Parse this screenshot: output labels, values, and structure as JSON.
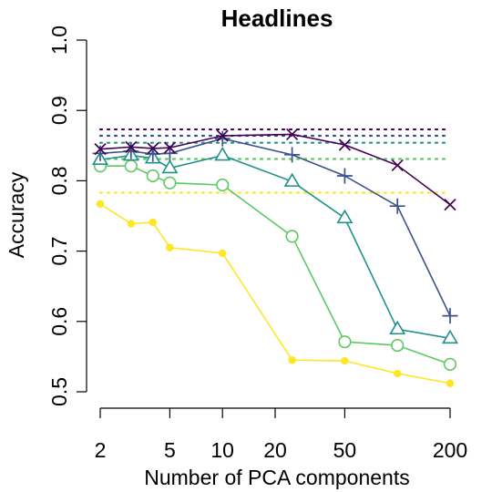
{
  "chart_data": {
    "type": "line",
    "title": "Headlines",
    "xlabel": "Number of PCA components",
    "ylabel": "Accuracy",
    "x_scale": "log",
    "xlim": [
      2,
      200
    ],
    "ylim": [
      0.5,
      1.0
    ],
    "x_ticks": [
      2,
      5,
      10,
      20,
      50,
      200
    ],
    "x_tick_labels": [
      "2",
      "5",
      "10",
      "20",
      "50",
      "200"
    ],
    "y_ticks": [
      0.5,
      0.6,
      0.7,
      0.8,
      0.9,
      1.0
    ],
    "y_tick_labels": [
      "0.5",
      "0.6",
      "0.7",
      "0.8",
      "0.9",
      "1.0"
    ],
    "grid": false,
    "legend": "none",
    "x": [
      2,
      3,
      4,
      5,
      10,
      25,
      50,
      100,
      200
    ],
    "series": [
      {
        "color": "#FDE725",
        "marker": "filled-circle",
        "values": [
          0.767,
          0.739,
          0.741,
          0.705,
          0.697,
          0.545,
          0.544,
          0.526,
          0.512
        ],
        "baseline": 0.783
      },
      {
        "color": "#5EC962",
        "marker": "open-circle",
        "values": [
          0.821,
          0.821,
          0.807,
          0.797,
          0.794,
          0.721,
          0.571,
          0.566,
          0.539
        ],
        "baseline": 0.831
      },
      {
        "color": "#21918C",
        "marker": "open-triangle",
        "values": [
          0.83,
          0.836,
          0.832,
          0.818,
          0.836,
          0.799,
          0.747,
          0.589,
          0.576
        ],
        "baseline": 0.854
      },
      {
        "color": "#3B528B",
        "marker": "plus",
        "values": [
          0.839,
          0.842,
          0.838,
          0.839,
          0.86,
          0.837,
          0.807,
          0.764,
          0.608
        ],
        "baseline": 0.864
      },
      {
        "color": "#440154",
        "marker": "cross",
        "values": [
          0.845,
          0.848,
          0.846,
          0.847,
          0.864,
          0.866,
          0.851,
          0.822,
          0.766
        ],
        "baseline": 0.873
      }
    ]
  }
}
